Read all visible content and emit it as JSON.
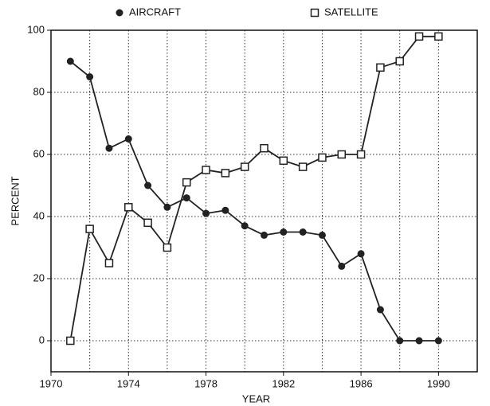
{
  "chart_data": {
    "type": "line",
    "x": [
      1971,
      1972,
      1973,
      1974,
      1975,
      1976,
      1977,
      1978,
      1979,
      1980,
      1981,
      1982,
      1983,
      1984,
      1985,
      1986,
      1987,
      1988,
      1989,
      1990
    ],
    "series": [
      {
        "name": "AIRCRAFT",
        "color": "#222222",
        "marker": "filled-circle",
        "values": [
          90,
          85,
          62,
          65,
          50,
          43,
          46,
          41,
          42,
          37,
          34,
          35,
          35,
          34,
          24,
          28,
          10,
          0,
          0,
          0
        ]
      },
      {
        "name": "SATELLITE",
        "color": "#222222",
        "marker": "open-square",
        "values": [
          0,
          36,
          25,
          43,
          38,
          30,
          51,
          55,
          54,
          56,
          62,
          58,
          56,
          59,
          60,
          60,
          88,
          90,
          98,
          98
        ]
      }
    ],
    "xlabel": "YEAR",
    "ylabel": "PERCENT",
    "xlim": [
      1970,
      1992
    ],
    "xticks": [
      1970,
      1974,
      1978,
      1982,
      1986,
      1990
    ],
    "xminor_ticks": [
      1972,
      1976,
      1980,
      1984,
      1988,
      1992
    ],
    "ylim": [
      -10,
      100
    ],
    "yticks": [
      0,
      20,
      40,
      60,
      80,
      100
    ],
    "grid": true,
    "legend": "top"
  }
}
